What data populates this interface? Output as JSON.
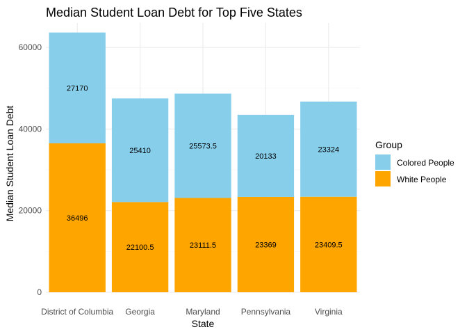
{
  "chart_data": {
    "type": "bar",
    "stacked": true,
    "title": "Median Student Loan Debt for Top Five States",
    "xlabel": "State",
    "ylabel": "Median Student Loan Debt",
    "categories": [
      "District of Columbia",
      "Georgia",
      "Maryland",
      "Pennsylvania",
      "Virginia"
    ],
    "series": [
      {
        "name": "White People",
        "color": "#FFA500",
        "values": [
          36496,
          22100.5,
          23111.5,
          23369,
          23409.5
        ]
      },
      {
        "name": "Colored People",
        "color": "#87CEEB",
        "values": [
          27170,
          25410,
          25573.5,
          20133,
          23324
        ]
      }
    ],
    "data_labels": {
      "White People": [
        "36496",
        "22100.5",
        "23111.5",
        "23369",
        "23409.5"
      ],
      "Colored People": [
        "27170",
        "25410",
        "25573.5",
        "20133",
        "23324"
      ]
    },
    "yticks": [
      "0",
      "20000",
      "40000",
      "60000"
    ],
    "ylim": [
      0,
      66000
    ],
    "grid": true,
    "legend": {
      "title": "Group",
      "position": "right",
      "entries": [
        {
          "label": "Colored People",
          "color": "#87CEEB"
        },
        {
          "label": "White People",
          "color": "#FFA500"
        }
      ]
    }
  }
}
